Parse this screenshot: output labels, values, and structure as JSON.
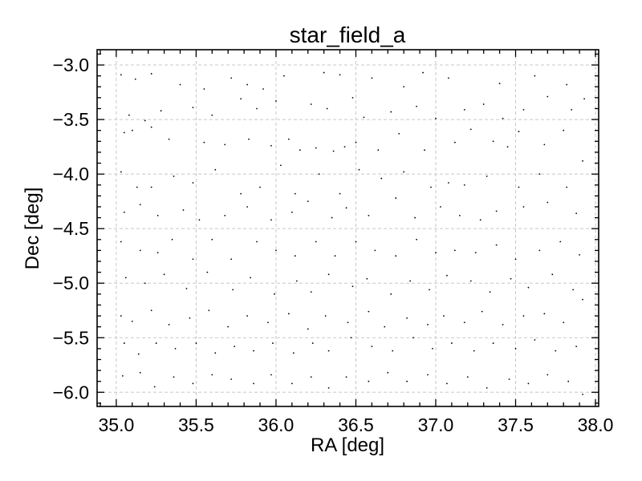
{
  "chart_data": {
    "type": "scatter",
    "title": "star_field_a",
    "xlabel": "RA [deg]",
    "ylabel": "Dec [deg]",
    "xlim": [
      34.88,
      38.02
    ],
    "ylim": [
      -6.13,
      -2.86
    ],
    "xticks": [
      35.0,
      35.5,
      36.0,
      36.5,
      37.0,
      37.5,
      38.0
    ],
    "xtick_labels": [
      "35.0",
      "35.5",
      "36.0",
      "36.5",
      "37.0",
      "37.5",
      "38.0"
    ],
    "yticks": [
      -3.0,
      -3.5,
      -4.0,
      -4.5,
      -5.0,
      -5.5,
      -6.0
    ],
    "ytick_labels": [
      "−3.0",
      "−3.5",
      "−4.0",
      "−4.5",
      "−5.0",
      "−5.5",
      "−6.0"
    ],
    "grid": true,
    "marker_color": "#000000",
    "series": [
      {
        "points": [
          [
            35.03,
            -3.09
          ],
          [
            35.12,
            -3.13
          ],
          [
            35.22,
            -3.08
          ],
          [
            35.4,
            -3.18
          ],
          [
            35.55,
            -3.22
          ],
          [
            35.72,
            -3.12
          ],
          [
            35.82,
            -3.18
          ],
          [
            35.92,
            -3.22
          ],
          [
            36.05,
            -3.1
          ],
          [
            36.3,
            -3.07
          ],
          [
            36.4,
            -3.09
          ],
          [
            36.6,
            -3.12
          ],
          [
            36.8,
            -3.2
          ],
          [
            36.92,
            -3.07
          ],
          [
            37.08,
            -3.12
          ],
          [
            37.4,
            -3.17
          ],
          [
            37.62,
            -3.1
          ],
          [
            37.82,
            -3.18
          ],
          [
            35.08,
            -3.46
          ],
          [
            35.18,
            -3.51
          ],
          [
            35.28,
            -3.42
          ],
          [
            35.48,
            -3.39
          ],
          [
            35.6,
            -3.46
          ],
          [
            35.78,
            -3.31
          ],
          [
            35.88,
            -3.4
          ],
          [
            36.0,
            -3.33
          ],
          [
            36.22,
            -3.36
          ],
          [
            36.32,
            -3.4
          ],
          [
            36.48,
            -3.3
          ],
          [
            36.55,
            -3.48
          ],
          [
            36.72,
            -3.43
          ],
          [
            36.88,
            -3.38
          ],
          [
            37.0,
            -3.49
          ],
          [
            37.18,
            -3.41
          ],
          [
            37.3,
            -3.36
          ],
          [
            37.42,
            -3.49
          ],
          [
            37.55,
            -3.41
          ],
          [
            37.7,
            -3.29
          ],
          [
            37.85,
            -3.41
          ],
          [
            37.93,
            -3.31
          ],
          [
            35.05,
            -3.62
          ],
          [
            35.1,
            -3.6
          ],
          [
            35.22,
            -3.57
          ],
          [
            35.33,
            -3.68
          ],
          [
            35.55,
            -3.71
          ],
          [
            35.68,
            -3.73
          ],
          [
            35.83,
            -3.68
          ],
          [
            35.97,
            -3.74
          ],
          [
            36.08,
            -3.68
          ],
          [
            36.15,
            -3.78
          ],
          [
            36.25,
            -3.76
          ],
          [
            36.36,
            -3.79
          ],
          [
            36.43,
            -3.75
          ],
          [
            36.5,
            -3.71
          ],
          [
            36.64,
            -3.78
          ],
          [
            36.77,
            -3.63
          ],
          [
            36.93,
            -3.78
          ],
          [
            37.12,
            -3.71
          ],
          [
            37.22,
            -3.59
          ],
          [
            37.36,
            -3.7
          ],
          [
            37.45,
            -3.75
          ],
          [
            37.52,
            -3.61
          ],
          [
            37.68,
            -3.73
          ],
          [
            37.8,
            -3.6
          ],
          [
            35.03,
            -3.98
          ],
          [
            35.13,
            -4.12
          ],
          [
            35.22,
            -4.12
          ],
          [
            35.36,
            -4.02
          ],
          [
            35.48,
            -4.08
          ],
          [
            35.62,
            -3.96
          ],
          [
            35.78,
            -4.18
          ],
          [
            35.9,
            -4.12
          ],
          [
            36.03,
            -3.92
          ],
          [
            36.12,
            -4.18
          ],
          [
            36.27,
            -4.0
          ],
          [
            36.4,
            -4.18
          ],
          [
            36.52,
            -3.96
          ],
          [
            36.66,
            -4.04
          ],
          [
            36.8,
            -3.98
          ],
          [
            36.97,
            -4.12
          ],
          [
            37.08,
            -4.08
          ],
          [
            37.18,
            -4.1
          ],
          [
            37.32,
            -4.02
          ],
          [
            37.52,
            -4.12
          ],
          [
            37.65,
            -4.0
          ],
          [
            37.82,
            -4.12
          ],
          [
            37.92,
            -3.88
          ],
          [
            35.05,
            -4.35
          ],
          [
            35.15,
            -4.28
          ],
          [
            35.26,
            -4.38
          ],
          [
            35.42,
            -4.33
          ],
          [
            35.52,
            -4.42
          ],
          [
            35.68,
            -4.38
          ],
          [
            35.82,
            -4.3
          ],
          [
            35.97,
            -4.42
          ],
          [
            36.1,
            -4.35
          ],
          [
            36.2,
            -4.25
          ],
          [
            36.35,
            -4.4
          ],
          [
            36.44,
            -4.31
          ],
          [
            36.58,
            -4.38
          ],
          [
            36.75,
            -4.22
          ],
          [
            36.87,
            -4.4
          ],
          [
            37.03,
            -4.3
          ],
          [
            37.15,
            -4.38
          ],
          [
            37.28,
            -4.42
          ],
          [
            37.38,
            -4.34
          ],
          [
            37.55,
            -4.3
          ],
          [
            37.7,
            -4.26
          ],
          [
            37.88,
            -4.36
          ],
          [
            35.03,
            -4.62
          ],
          [
            35.15,
            -4.7
          ],
          [
            35.26,
            -4.72
          ],
          [
            35.35,
            -4.6
          ],
          [
            35.48,
            -4.78
          ],
          [
            35.6,
            -4.6
          ],
          [
            35.72,
            -4.78
          ],
          [
            35.88,
            -4.62
          ],
          [
            36.0,
            -4.7
          ],
          [
            36.12,
            -4.75
          ],
          [
            36.25,
            -4.62
          ],
          [
            36.37,
            -4.75
          ],
          [
            36.5,
            -4.62
          ],
          [
            36.62,
            -4.7
          ],
          [
            36.75,
            -4.75
          ],
          [
            36.88,
            -4.6
          ],
          [
            37.0,
            -4.72
          ],
          [
            37.12,
            -4.7
          ],
          [
            37.25,
            -4.72
          ],
          [
            37.38,
            -4.65
          ],
          [
            37.5,
            -4.78
          ],
          [
            37.65,
            -4.7
          ],
          [
            37.78,
            -4.62
          ],
          [
            37.9,
            -4.74
          ],
          [
            35.06,
            -4.95
          ],
          [
            35.18,
            -5.0
          ],
          [
            35.3,
            -4.92
          ],
          [
            35.44,
            -5.05
          ],
          [
            35.57,
            -4.9
          ],
          [
            35.73,
            -5.06
          ],
          [
            35.84,
            -4.95
          ],
          [
            35.99,
            -5.1
          ],
          [
            36.13,
            -4.98
          ],
          [
            36.22,
            -5.08
          ],
          [
            36.33,
            -4.92
          ],
          [
            36.48,
            -5.03
          ],
          [
            36.57,
            -4.96
          ],
          [
            36.72,
            -5.1
          ],
          [
            36.84,
            -4.98
          ],
          [
            36.96,
            -5.06
          ],
          [
            37.07,
            -4.93
          ],
          [
            37.22,
            -4.98
          ],
          [
            37.34,
            -5.08
          ],
          [
            37.47,
            -4.96
          ],
          [
            37.58,
            -5.04
          ],
          [
            37.73,
            -4.92
          ],
          [
            37.86,
            -5.06
          ],
          [
            35.03,
            -5.3
          ],
          [
            35.1,
            -5.35
          ],
          [
            35.22,
            -5.25
          ],
          [
            35.33,
            -5.38
          ],
          [
            35.46,
            -5.32
          ],
          [
            35.58,
            -5.25
          ],
          [
            35.7,
            -5.4
          ],
          [
            35.82,
            -5.3
          ],
          [
            35.95,
            -5.36
          ],
          [
            36.08,
            -5.28
          ],
          [
            36.2,
            -5.42
          ],
          [
            36.31,
            -5.3
          ],
          [
            36.45,
            -5.36
          ],
          [
            36.58,
            -5.26
          ],
          [
            36.68,
            -5.4
          ],
          [
            36.82,
            -5.32
          ],
          [
            36.95,
            -5.38
          ],
          [
            37.05,
            -5.3
          ],
          [
            37.18,
            -5.36
          ],
          [
            37.29,
            -5.26
          ],
          [
            37.42,
            -5.38
          ],
          [
            37.55,
            -5.3
          ],
          [
            37.68,
            -5.28
          ],
          [
            37.8,
            -5.36
          ],
          [
            37.92,
            -5.15
          ],
          [
            35.05,
            -5.55
          ],
          [
            35.14,
            -5.65
          ],
          [
            35.25,
            -5.55
          ],
          [
            35.37,
            -5.6
          ],
          [
            35.5,
            -5.55
          ],
          [
            35.62,
            -5.64
          ],
          [
            35.74,
            -5.58
          ],
          [
            35.86,
            -5.62
          ],
          [
            35.98,
            -5.55
          ],
          [
            36.11,
            -5.64
          ],
          [
            36.23,
            -5.55
          ],
          [
            36.33,
            -5.62
          ],
          [
            36.47,
            -5.5
          ],
          [
            36.6,
            -5.58
          ],
          [
            36.73,
            -5.62
          ],
          [
            36.86,
            -5.5
          ],
          [
            36.98,
            -5.6
          ],
          [
            37.1,
            -5.55
          ],
          [
            37.24,
            -5.62
          ],
          [
            37.36,
            -5.55
          ],
          [
            37.5,
            -5.6
          ],
          [
            37.62,
            -5.52
          ],
          [
            37.75,
            -5.62
          ],
          [
            37.88,
            -5.58
          ],
          [
            35.04,
            -5.85
          ],
          [
            35.15,
            -5.82
          ],
          [
            35.24,
            -5.95
          ],
          [
            35.36,
            -5.86
          ],
          [
            35.48,
            -5.92
          ],
          [
            35.6,
            -5.84
          ],
          [
            35.72,
            -5.88
          ],
          [
            35.86,
            -5.92
          ],
          [
            35.97,
            -5.84
          ],
          [
            36.1,
            -5.92
          ],
          [
            36.22,
            -5.86
          ],
          [
            36.33,
            -5.96
          ],
          [
            36.44,
            -5.86
          ],
          [
            36.58,
            -5.9
          ],
          [
            36.7,
            -5.82
          ],
          [
            36.82,
            -5.9
          ],
          [
            36.95,
            -5.84
          ],
          [
            37.07,
            -5.92
          ],
          [
            37.2,
            -5.86
          ],
          [
            37.32,
            -5.96
          ],
          [
            37.46,
            -5.88
          ],
          [
            37.58,
            -5.92
          ],
          [
            37.7,
            -5.84
          ],
          [
            37.83,
            -5.9
          ],
          [
            37.92,
            -6.02
          ]
        ]
      }
    ]
  }
}
